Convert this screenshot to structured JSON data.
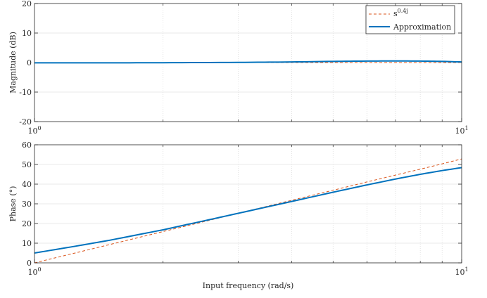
{
  "chart_data": [
    {
      "type": "line",
      "ylabel": "Magnitude (dB)",
      "xlabel": "",
      "xscale": "log",
      "xlim": [
        1,
        10
      ],
      "ylim": [
        -20,
        20
      ],
      "x_ticks": [
        1,
        10
      ],
      "x_tick_labels": [
        {
          "base": "10",
          "exp": "0"
        },
        {
          "base": "10",
          "exp": "1"
        }
      ],
      "y_ticks": [
        -20,
        -10,
        0,
        10,
        20
      ],
      "y_tick_labels": [
        "-20",
        "-10",
        "0",
        "10",
        "20"
      ],
      "grid": true,
      "legend": "top-right",
      "x": [
        1,
        1.5,
        2,
        3,
        4,
        5,
        6,
        7,
        8,
        9,
        10
      ],
      "series": [
        {
          "name": "s^{0.4j}",
          "name_base": "s",
          "name_exp": "0.4j",
          "style": "dashed",
          "color": "#D95319",
          "values": [
            0,
            0,
            0,
            0,
            0,
            0,
            0,
            0,
            0,
            0,
            0
          ]
        },
        {
          "name": "Approximation",
          "style": "solid",
          "color": "#0072BD",
          "values": [
            -0.1,
            -0.1,
            -0.05,
            0.05,
            0.2,
            0.4,
            0.5,
            0.55,
            0.5,
            0.4,
            0.2
          ]
        }
      ]
    },
    {
      "type": "line",
      "ylabel": "Phase (°)",
      "xlabel": "Input frequency (rad/s)",
      "xscale": "log",
      "xlim": [
        1,
        10
      ],
      "ylim": [
        0,
        60
      ],
      "x_ticks": [
        1,
        10
      ],
      "x_tick_labels": [
        {
          "base": "10",
          "exp": "0"
        },
        {
          "base": "10",
          "exp": "1"
        }
      ],
      "y_ticks": [
        0,
        10,
        20,
        30,
        40,
        50,
        60
      ],
      "y_tick_labels": [
        "0",
        "10",
        "20",
        "30",
        "40",
        "50",
        "60"
      ],
      "grid": true,
      "x": [
        1,
        1.25,
        1.5,
        2,
        2.5,
        3,
        4,
        5,
        6,
        7,
        8,
        9,
        10
      ],
      "series": [
        {
          "name": "s^{0.4j}",
          "style": "dashed",
          "color": "#D95319",
          "values": [
            0,
            5.1,
            9.3,
            15.9,
            21.0,
            25.2,
            31.8,
            36.9,
            41.1,
            44.6,
            47.6,
            50.3,
            52.8
          ]
        },
        {
          "name": "Approximation",
          "style": "solid",
          "color": "#0072BD",
          "values": [
            5.0,
            8.5,
            11.5,
            16.8,
            21.4,
            25.2,
            31.2,
            35.9,
            39.6,
            42.6,
            45.0,
            46.9,
            48.4
          ]
        }
      ]
    }
  ]
}
